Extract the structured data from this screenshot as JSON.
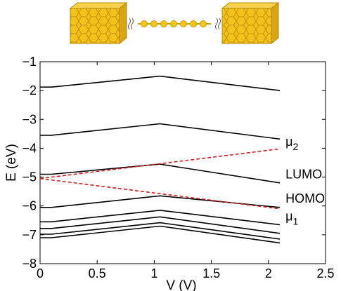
{
  "chart_data": {
    "type": "line",
    "title": "",
    "xlabel": "V (V)",
    "ylabel": "E (eV)",
    "xlim": [
      0,
      2.5
    ],
    "ylim": [
      -8,
      -1
    ],
    "xticks": [
      "0",
      "0.5",
      "1",
      "1.5",
      "2",
      "2.5"
    ],
    "yticks": [
      "−8",
      "−7",
      "−6",
      "−5",
      "−4",
      "−3",
      "−2",
      "−1"
    ],
    "grid": false,
    "colors": {
      "levels": "#000000",
      "mu": "#d42020",
      "gold": "#f2c21a",
      "gold_dark": "#b8860b"
    },
    "series": [
      {
        "style": "solid",
        "x": [
          0,
          0.1,
          1.05,
          2.1
        ],
        "y": [
          -1.88,
          -1.88,
          -1.5,
          -2.0
        ]
      },
      {
        "style": "solid",
        "x": [
          0,
          0.1,
          1.05,
          2.1
        ],
        "y": [
          -3.55,
          -3.55,
          -3.15,
          -3.68
        ]
      },
      {
        "style": "solid",
        "x": [
          0,
          0.1,
          1.05,
          2.1
        ],
        "y": [
          -4.9,
          -4.9,
          -4.55,
          -5.2
        ]
      },
      {
        "style": "solid",
        "x": [
          0,
          0.1,
          1.05,
          2.1
        ],
        "y": [
          -6.05,
          -6.05,
          -5.65,
          -6.05
        ]
      },
      {
        "style": "solid",
        "x": [
          0,
          0.1,
          1.05,
          2.1
        ],
        "y": [
          -6.55,
          -6.55,
          -6.15,
          -6.65
        ]
      },
      {
        "style": "solid",
        "x": [
          0,
          0.1,
          1.05,
          2.1
        ],
        "y": [
          -6.78,
          -6.78,
          -6.38,
          -6.95
        ]
      },
      {
        "style": "solid",
        "x": [
          0,
          0.1,
          1.05,
          2.1
        ],
        "y": [
          -6.98,
          -6.98,
          -6.58,
          -7.15
        ]
      },
      {
        "style": "solid",
        "x": [
          0,
          0.1,
          1.05,
          2.1
        ],
        "y": [
          -7.1,
          -7.1,
          -6.7,
          -7.28
        ]
      },
      {
        "style": "dashed",
        "x": [
          0,
          2.1
        ],
        "y": [
          -5.05,
          -4.02
        ]
      },
      {
        "style": "dashed",
        "x": [
          0,
          2.1
        ],
        "y": [
          -5.05,
          -6.1
        ]
      }
    ],
    "annotations": [
      {
        "text_main": "μ",
        "text_sub": "2",
        "x": 2.15,
        "y": -3.92
      },
      {
        "text_main": "LUMO",
        "text_sub": "",
        "x": 2.15,
        "y": -5.05
      },
      {
        "text_main": "HOMO",
        "text_sub": "",
        "x": 2.15,
        "y": -5.88
      },
      {
        "text_main": "μ",
        "text_sub": "1",
        "x": 2.15,
        "y": -6.5
      }
    ]
  }
}
